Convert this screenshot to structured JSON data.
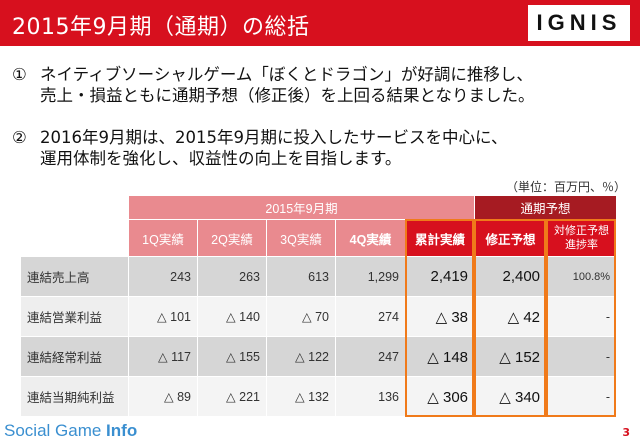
{
  "header": {
    "title": "2015年9月期（通期）の総括",
    "logo": "IGNIS"
  },
  "bullets": [
    {
      "num": "①",
      "line1": "ネイティブソーシャルゲーム「ぼくとドラゴン」が好調に推移し、",
      "line2": "売上・損益ともに通期予想（修正後）を上回る結果となりました。"
    },
    {
      "num": "②",
      "line1": "2016年9月期は、2015年9月期に投入したサービスを中心に、",
      "line2": "運用体制を強化し、収益性の向上を目指します。"
    }
  ],
  "unit_note": "（単位：百万円、％）",
  "table": {
    "group_fy": "2015年9月期",
    "group_forecast": "通期予想",
    "columns": [
      "1Q実績",
      "2Q実績",
      "3Q実績",
      "4Q実績",
      "累計実績",
      "修正予想",
      "対修正予想進捗率"
    ],
    "rows": [
      {
        "label": "連結売上高",
        "values": [
          "243",
          "263",
          "613",
          "1,299",
          "2,419",
          "2,400",
          "100.8%"
        ]
      },
      {
        "label": "連結営業利益",
        "values": [
          "△ 101",
          "△ 140",
          "△ 70",
          "274",
          "△ 38",
          "△ 42",
          "-"
        ]
      },
      {
        "label": "連結経常利益",
        "values": [
          "△ 117",
          "△ 155",
          "△ 122",
          "247",
          "△ 148",
          "△ 152",
          "-"
        ]
      },
      {
        "label": "連結当期純利益",
        "values": [
          "△ 89",
          "△ 221",
          "△ 132",
          "136",
          "△ 306",
          "△ 340",
          "-"
        ]
      }
    ]
  },
  "footer": {
    "watermark_prefix": "Social Game ",
    "watermark_suffix": "Info",
    "page_number": "3"
  },
  "colors": {
    "brand_red": "#d7101e",
    "header_pink": "#e98a8f",
    "forecast_dark": "#a61b22",
    "highlight_orange": "#f07a1a"
  }
}
